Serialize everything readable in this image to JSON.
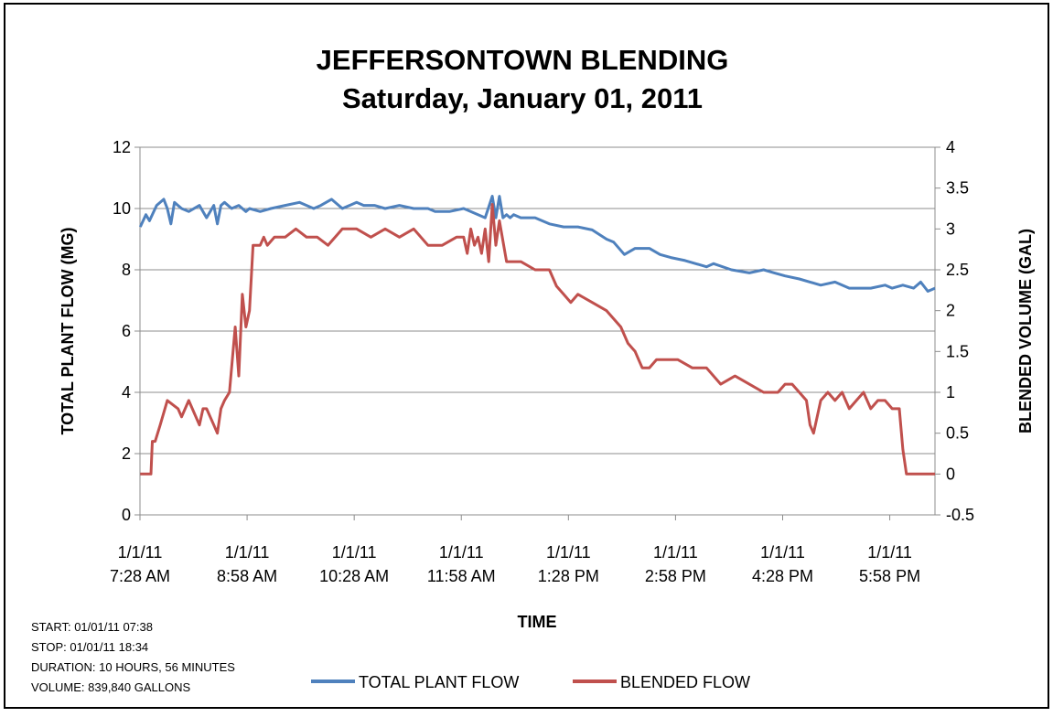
{
  "chart_data": {
    "type": "line",
    "title": "JEFFERSONTOWN BLENDING",
    "subtitle": "Saturday, January 01, 2011",
    "xlabel": "TIME",
    "ylabel": "TOTAL PLANT FLOW (MG)",
    "y2label": "BLENDED VOLUME (GAL)",
    "ylim": [
      0,
      12
    ],
    "y2lim": [
      -0.5,
      4
    ],
    "yticks": [
      "0",
      "2",
      "4",
      "6",
      "8",
      "10",
      "12"
    ],
    "y2ticks": [
      "-0.5",
      "0",
      "0.5",
      "1",
      "1.5",
      "2",
      "2.5",
      "3",
      "3.5",
      "4"
    ],
    "xlim_hours": [
      7.4667,
      18.6
    ],
    "xticks": [
      {
        "date": "1/1/11",
        "time": "7:28 AM",
        "hour": 7.4667
      },
      {
        "date": "1/1/11",
        "time": "8:58 AM",
        "hour": 8.9667
      },
      {
        "date": "1/1/11",
        "time": "10:28 AM",
        "hour": 10.4667
      },
      {
        "date": "1/1/11",
        "time": "11:58 AM",
        "hour": 11.9667
      },
      {
        "date": "1/1/11",
        "time": "1:28 PM",
        "hour": 13.4667
      },
      {
        "date": "1/1/11",
        "time": "2:58 PM",
        "hour": 14.9667
      },
      {
        "date": "1/1/11",
        "time": "4:28 PM",
        "hour": 16.4667
      },
      {
        "date": "1/1/11",
        "time": "5:58 PM",
        "hour": 17.9667
      }
    ],
    "grid": true,
    "legend": "bottom",
    "series": [
      {
        "name": "TOTAL PLANT FLOW",
        "axis": "left",
        "color": "#4f81bd",
        "x": [
          7.47,
          7.55,
          7.6,
          7.7,
          7.8,
          7.85,
          7.9,
          7.95,
          8.05,
          8.15,
          8.3,
          8.4,
          8.5,
          8.55,
          8.6,
          8.65,
          8.75,
          8.85,
          8.95,
          9.0,
          9.15,
          9.3,
          9.5,
          9.7,
          9.9,
          10.0,
          10.15,
          10.3,
          10.5,
          10.6,
          10.75,
          10.9,
          11.1,
          11.3,
          11.5,
          11.6,
          11.8,
          12.0,
          12.2,
          12.3,
          12.4,
          12.45,
          12.5,
          12.55,
          12.6,
          12.65,
          12.7,
          12.8,
          13.0,
          13.2,
          13.4,
          13.6,
          13.8,
          14.0,
          14.1,
          14.25,
          14.4,
          14.6,
          14.75,
          14.9,
          15.1,
          15.25,
          15.4,
          15.5,
          15.75,
          16.0,
          16.2,
          16.35,
          16.5,
          16.7,
          16.85,
          17.0,
          17.2,
          17.4,
          17.5,
          17.7,
          17.9,
          18.0,
          18.15,
          18.3,
          18.4,
          18.5,
          18.6
        ],
        "y": [
          9.4,
          9.8,
          9.6,
          10.1,
          10.3,
          10.0,
          9.5,
          10.2,
          10.0,
          9.9,
          10.1,
          9.7,
          10.1,
          9.5,
          10.1,
          10.2,
          10.0,
          10.1,
          9.9,
          10.0,
          9.9,
          10.0,
          10.1,
          10.2,
          10.0,
          10.1,
          10.3,
          10.0,
          10.2,
          10.1,
          10.1,
          10.0,
          10.1,
          10.0,
          10.0,
          9.9,
          9.9,
          10.0,
          9.8,
          9.7,
          10.4,
          9.7,
          10.4,
          9.7,
          9.8,
          9.7,
          9.8,
          9.7,
          9.7,
          9.5,
          9.4,
          9.4,
          9.3,
          9.0,
          8.9,
          8.5,
          8.7,
          8.7,
          8.5,
          8.4,
          8.3,
          8.2,
          8.1,
          8.2,
          8.0,
          7.9,
          8.0,
          7.9,
          7.8,
          7.7,
          7.6,
          7.5,
          7.6,
          7.4,
          7.4,
          7.4,
          7.5,
          7.4,
          7.5,
          7.4,
          7.6,
          7.3,
          7.4
        ]
      },
      {
        "name": "BLENDED FLOW",
        "axis": "right",
        "color": "#c0504d",
        "x": [
          7.47,
          7.62,
          7.64,
          7.68,
          7.75,
          7.85,
          8.0,
          8.05,
          8.15,
          8.3,
          8.35,
          8.4,
          8.5,
          8.55,
          8.6,
          8.65,
          8.72,
          8.8,
          8.85,
          8.9,
          8.95,
          9.0,
          9.05,
          9.1,
          9.15,
          9.2,
          9.25,
          9.35,
          9.5,
          9.65,
          9.8,
          9.95,
          10.1,
          10.3,
          10.5,
          10.7,
          10.9,
          11.1,
          11.3,
          11.5,
          11.7,
          11.9,
          12.0,
          12.05,
          12.1,
          12.15,
          12.2,
          12.25,
          12.3,
          12.35,
          12.4,
          12.45,
          12.5,
          12.6,
          12.8,
          13.0,
          13.2,
          13.3,
          13.4,
          13.5,
          13.6,
          13.8,
          14.0,
          14.2,
          14.3,
          14.4,
          14.45,
          14.5,
          14.6,
          14.7,
          15.0,
          15.2,
          15.4,
          15.6,
          15.8,
          16.0,
          16.2,
          16.4,
          16.5,
          16.6,
          16.7,
          16.8,
          16.85,
          16.9,
          17.0,
          17.1,
          17.2,
          17.3,
          17.4,
          17.5,
          17.6,
          17.7,
          17.8,
          17.9,
          18.0,
          18.1,
          18.15,
          18.2,
          18.25,
          18.3,
          18.6
        ],
        "y": [
          0.0,
          0.0,
          0.4,
          0.4,
          0.6,
          0.9,
          0.8,
          0.7,
          0.9,
          0.6,
          0.8,
          0.8,
          0.6,
          0.5,
          0.8,
          0.9,
          1.0,
          1.8,
          1.2,
          2.2,
          1.8,
          2.0,
          2.8,
          2.8,
          2.8,
          2.9,
          2.8,
          2.9,
          2.9,
          3.0,
          2.9,
          2.9,
          2.8,
          3.0,
          3.0,
          2.9,
          3.0,
          2.9,
          3.0,
          2.8,
          2.8,
          2.9,
          2.9,
          2.7,
          3.0,
          2.8,
          2.9,
          2.7,
          3.0,
          2.6,
          3.3,
          2.8,
          3.1,
          2.6,
          2.6,
          2.5,
          2.5,
          2.3,
          2.2,
          2.1,
          2.2,
          2.1,
          2.0,
          1.8,
          1.6,
          1.5,
          1.4,
          1.3,
          1.3,
          1.4,
          1.4,
          1.3,
          1.3,
          1.1,
          1.2,
          1.1,
          1.0,
          1.0,
          1.1,
          1.1,
          1.0,
          0.9,
          0.6,
          0.5,
          0.9,
          1.0,
          0.9,
          1.0,
          0.8,
          0.9,
          1.0,
          0.8,
          0.9,
          0.9,
          0.8,
          0.8,
          0.3,
          0.0,
          0.0,
          0.0,
          0.0
        ]
      }
    ]
  },
  "summary": {
    "start": "START: 01/01/11 07:38",
    "stop": "STOP: 01/01/11 18:34",
    "duration": "DURATION: 10 HOURS,  56 MINUTES",
    "volume": "VOLUME: 839,840 GALLONS"
  }
}
